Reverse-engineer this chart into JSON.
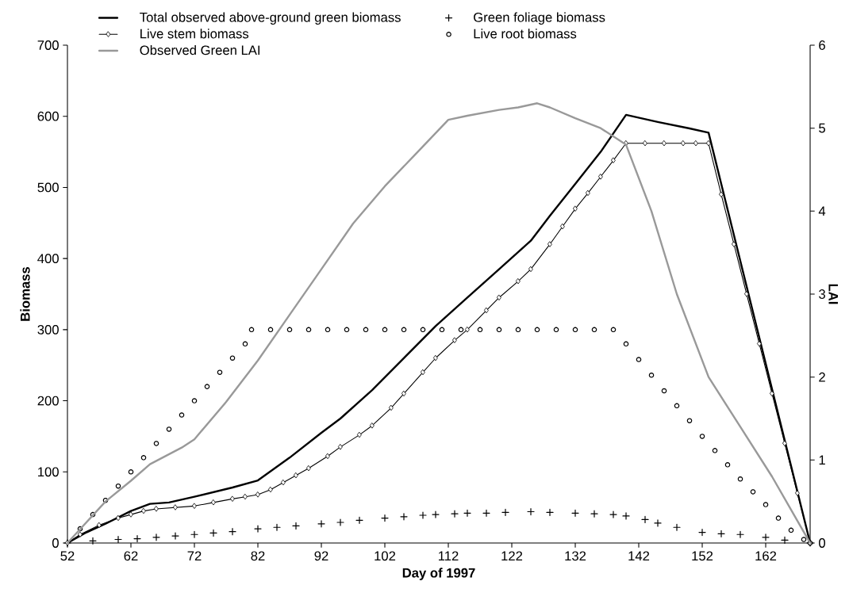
{
  "chart_data": {
    "type": "line",
    "xlabel": "Day of 1997",
    "ylabel": "Biomass",
    "y2label": "LAI",
    "xlim": [
      52,
      169
    ],
    "xticks": [
      52,
      62,
      72,
      82,
      92,
      102,
      112,
      122,
      132,
      142,
      152,
      162
    ],
    "ylim": [
      0,
      700
    ],
    "yticks": [
      0,
      100,
      200,
      300,
      400,
      500,
      600,
      700
    ],
    "y2lim": [
      0,
      6
    ],
    "y2ticks": [
      0,
      1,
      2,
      3,
      4,
      5,
      6
    ],
    "legend": "top",
    "grid": false,
    "series": [
      {
        "name": "Total observed above-ground green biomass",
        "color": "#000000",
        "type": "line",
        "marker": "none",
        "x": [
          52,
          55,
          58,
          62,
          65,
          68,
          72,
          78,
          82,
          87,
          92,
          95,
          100,
          105,
          110,
          115,
          120,
          125,
          128,
          132,
          136,
          140,
          145,
          150,
          153,
          169
        ],
        "values": [
          0,
          15,
          27,
          45,
          55,
          57,
          65,
          78,
          88,
          120,
          155,
          175,
          215,
          260,
          305,
          345,
          385,
          425,
          460,
          505,
          550,
          602,
          592,
          583,
          577,
          0
        ]
      },
      {
        "name": "Green foliage biomass",
        "color": "#000000",
        "type": "scatter",
        "marker": "cross",
        "x": [
          52,
          56,
          60,
          63,
          66,
          69,
          72,
          75,
          78,
          82,
          85,
          88,
          92,
          95,
          98,
          102,
          105,
          108,
          110,
          113,
          115,
          118,
          121,
          125,
          128,
          132,
          135,
          138,
          140,
          143,
          145,
          148,
          152,
          155,
          158,
          162,
          165,
          169
        ],
        "values": [
          0,
          3,
          5,
          6,
          8,
          10,
          12,
          14,
          16,
          20,
          22,
          24,
          27,
          29,
          32,
          35,
          37,
          39,
          40,
          41,
          42,
          42,
          43,
          44,
          43,
          42,
          41,
          40,
          38,
          33,
          28,
          22,
          15,
          13,
          12,
          8,
          4,
          0
        ]
      },
      {
        "name": "Live stem biomass",
        "color": "#000000",
        "type": "line",
        "marker": "diamond",
        "x": [
          52,
          54,
          57,
          60,
          62,
          64,
          66,
          69,
          72,
          75,
          78,
          80,
          82,
          84,
          86,
          88,
          90,
          93,
          95,
          98,
          100,
          103,
          105,
          108,
          110,
          113,
          115,
          118,
          120,
          123,
          125,
          128,
          130,
          132,
          134,
          136,
          138,
          140,
          143,
          146,
          149,
          151,
          153,
          155,
          157,
          159,
          161,
          163,
          165,
          167,
          169
        ],
        "values": [
          0,
          12,
          25,
          35,
          40,
          45,
          48,
          50,
          52,
          57,
          62,
          65,
          68,
          75,
          85,
          95,
          105,
          122,
          135,
          152,
          165,
          190,
          210,
          240,
          260,
          285,
          300,
          327,
          345,
          368,
          385,
          420,
          445,
          470,
          492,
          515,
          538,
          562,
          562,
          562,
          562,
          562,
          562,
          490,
          420,
          350,
          280,
          210,
          140,
          70,
          0
        ]
      },
      {
        "name": "Live root biomass",
        "color": "#000000",
        "type": "scatter",
        "marker": "circle",
        "x": [
          54,
          56,
          58,
          60,
          62,
          64,
          66,
          68,
          70,
          72,
          74,
          76,
          78,
          80,
          81,
          84,
          87,
          90,
          93,
          96,
          99,
          102,
          105,
          108,
          111,
          114,
          117,
          120,
          123,
          126,
          129,
          132,
          135,
          138,
          140,
          142,
          144,
          146,
          148,
          150,
          152,
          154,
          156,
          158,
          160,
          162,
          164,
          166,
          168,
          169
        ],
        "values": [
          20,
          40,
          60,
          80,
          100,
          120,
          140,
          160,
          180,
          200,
          220,
          240,
          260,
          280,
          300,
          300,
          300,
          300,
          300,
          300,
          300,
          300,
          300,
          300,
          300,
          300,
          300,
          300,
          300,
          300,
          300,
          300,
          300,
          300,
          280,
          258,
          236,
          214,
          193,
          172,
          150,
          130,
          110,
          90,
          72,
          54,
          35,
          18,
          5,
          0
        ]
      },
      {
        "name": "Observed Green LAI",
        "color": "#999999",
        "type": "line",
        "marker": "none",
        "axis": "y2",
        "x": [
          52,
          58,
          62,
          65,
          70,
          72,
          77,
          82,
          87,
          92,
          97,
          102,
          107,
          112,
          115,
          120,
          123,
          126,
          128,
          132,
          136,
          140,
          144,
          148,
          153,
          158,
          163,
          169
        ],
        "values": [
          0,
          0.5,
          0.75,
          0.95,
          1.15,
          1.25,
          1.7,
          2.2,
          2.75,
          3.3,
          3.85,
          4.3,
          4.7,
          5.1,
          5.15,
          5.22,
          5.25,
          5.3,
          5.25,
          5.12,
          5.0,
          4.8,
          4.0,
          3.0,
          2.0,
          1.4,
          0.8,
          0
        ]
      }
    ]
  }
}
